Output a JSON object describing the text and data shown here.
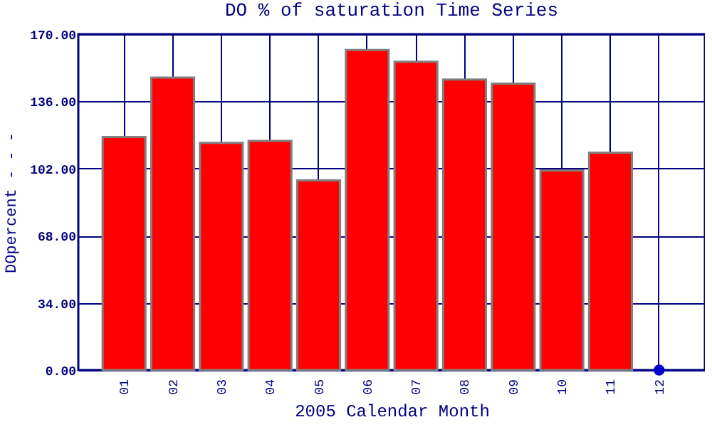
{
  "chart_data": {
    "type": "bar",
    "title": "DO % of saturation Time Series",
    "xlabel": "2005 Calendar Month",
    "ylabel": "DOpercent - - -",
    "categories": [
      "01",
      "02",
      "03",
      "04",
      "05",
      "06",
      "07",
      "08",
      "09",
      "10",
      "11",
      "12"
    ],
    "series": [
      {
        "color": "#ff0000",
        "values": [
          118,
          148,
          115,
          116,
          96,
          162,
          156,
          147,
          145,
          101,
          110,
          null
        ]
      },
      {
        "type": "scatter",
        "color": "#0000cc",
        "values": [
          null,
          null,
          null,
          null,
          null,
          null,
          null,
          null,
          null,
          null,
          null,
          0
        ]
      }
    ],
    "ylim": [
      0,
      170
    ],
    "yticks": [
      {
        "value": 0,
        "label": "0.00"
      },
      {
        "value": 34,
        "label": "34.00"
      },
      {
        "value": 68,
        "label": "68.00"
      },
      {
        "value": 102,
        "label": "102.00"
      },
      {
        "value": 136,
        "label": "136.00"
      },
      {
        "value": 170,
        "label": "170.00"
      }
    ],
    "grid": true
  }
}
